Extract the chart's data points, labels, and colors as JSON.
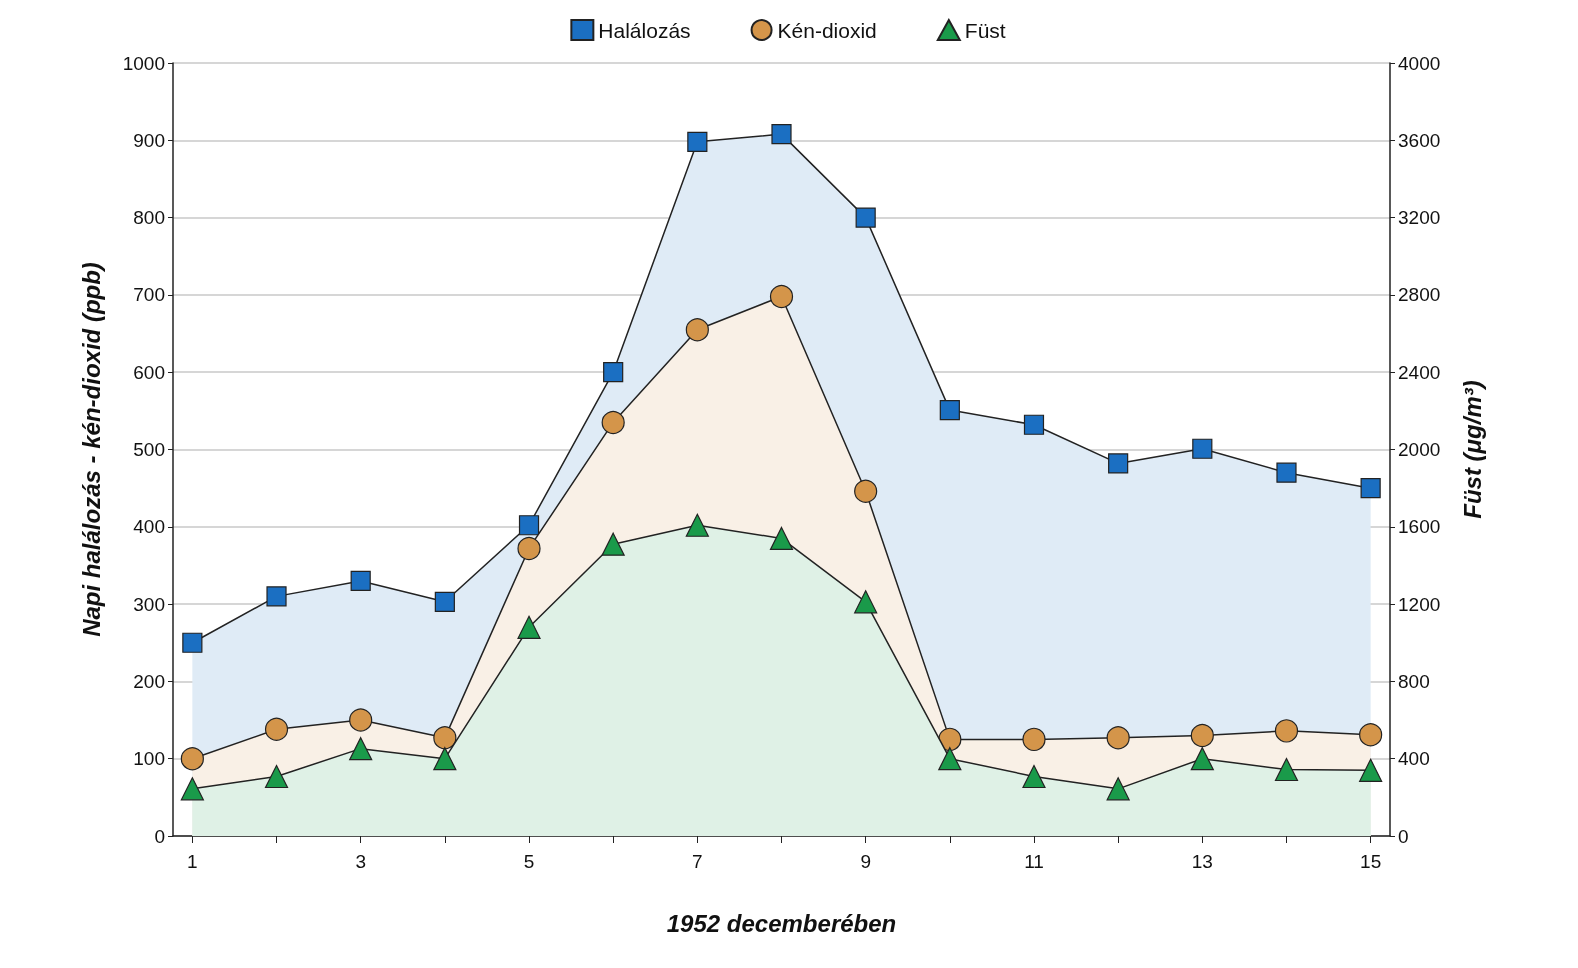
{
  "chart_data": {
    "type": "area",
    "xlabel": "1952 decemberében",
    "ylabel": "Napi halálozás - kén-dioxid (ppb)",
    "y2label": "Füst (μg/m³)",
    "x": [
      1,
      2,
      3,
      4,
      5,
      6,
      7,
      8,
      9,
      10,
      11,
      12,
      13,
      14,
      15
    ],
    "xlim": [
      0.77,
      15.23
    ],
    "xticks": [
      1,
      {
        "value": 2,
        "label": null
      },
      3,
      {
        "value": 4,
        "label": null
      },
      5,
      {
        "value": 6,
        "label": null
      },
      7,
      {
        "value": 8,
        "label": null
      },
      9,
      {
        "value": 10,
        "label": null
      },
      11,
      {
        "value": 12,
        "label": null
      },
      13,
      {
        "value": 14,
        "label": null
      },
      15
    ],
    "ylim": [
      0,
      1000
    ],
    "yticks": [
      0,
      100,
      200,
      300,
      400,
      500,
      600,
      700,
      800,
      900,
      1000
    ],
    "y2lim": [
      0,
      4000
    ],
    "y2ticks": [
      0,
      400,
      800,
      1200,
      1600,
      2000,
      2400,
      2800,
      3200,
      3600,
      4000
    ],
    "grid": "y",
    "legend": "top",
    "series": [
      {
        "name": "Halálozás",
        "color": "#1b6fc2",
        "marker": "square",
        "values": [
          250,
          310,
          330,
          303,
          402,
          600,
          898,
          908,
          800,
          551,
          532,
          482,
          501,
          470,
          450
        ]
      },
      {
        "name": "Kén-dioxid",
        "color": "#d4954a",
        "marker": "circle",
        "values": [
          100,
          138,
          150,
          127,
          372,
          535,
          655,
          698,
          446,
          125,
          125,
          127,
          130,
          136,
          131
        ]
      },
      {
        "name": "Füst",
        "color": "#1a9a4a",
        "marker": "triangle",
        "axis": "y2",
        "values": [
          244,
          308,
          452,
          400,
          1080,
          1510,
          1608,
          1540,
          1212,
          400,
          308,
          244,
          400,
          344,
          340
        ]
      }
    ]
  }
}
